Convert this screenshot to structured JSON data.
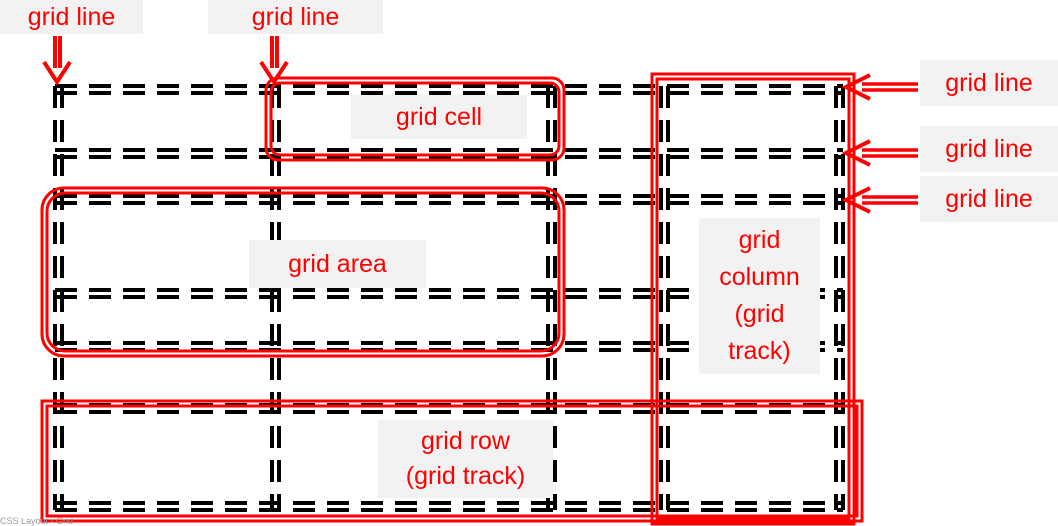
{
  "labels": {
    "grid_line_top_left": "grid line",
    "grid_line_top_mid": "grid line",
    "grid_line_right_1": "grid line",
    "grid_line_right_2": "grid line",
    "grid_line_right_3": "grid line",
    "grid_cell": "grid cell",
    "grid_area": "grid area",
    "grid_column_1": "grid",
    "grid_column_2": "column",
    "grid_column_3": "(grid",
    "grid_column_4": "track)",
    "grid_row_1": "grid row",
    "grid_row_2": "(grid track)"
  },
  "footer": "CSS Layout - Grid",
  "colors": {
    "accent": "#ff0000",
    "line": "#000000",
    "label_bg": "#f2f2f2"
  }
}
